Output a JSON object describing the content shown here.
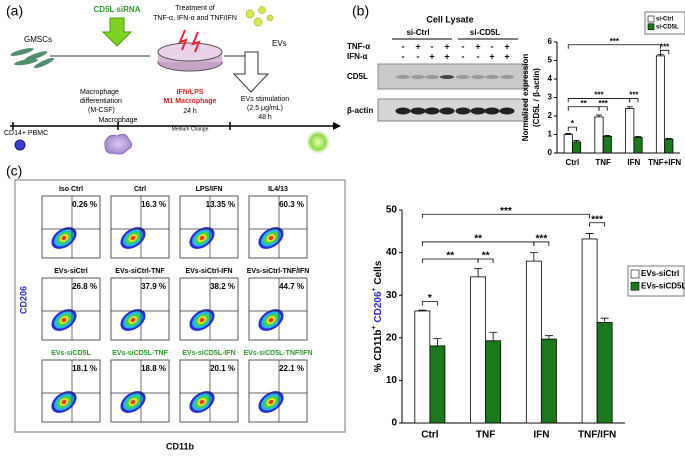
{
  "panel_a": {
    "label": "(a)",
    "gmscs": "GMSCs",
    "sirna": "CD5L siRNA",
    "treatment": [
      "Treatment of",
      "TNF-α, IFN-α and TNF/IFN"
    ],
    "evs": "EVs",
    "differentiation": [
      "Macrophage",
      "differentiation",
      "(M-CSF)"
    ],
    "m1": [
      "IFN/LPS",
      "M1 Macrophage",
      "24 h"
    ],
    "stimulation": [
      "EVs stimulation",
      "(2.5 μg/mL)",
      "48 h"
    ],
    "pbmc": "CD14+ PBMC",
    "macrophage": "Macrophage",
    "medium": "Medium Change"
  },
  "panel_b": {
    "label": "(b)",
    "blot_title": "Cell Lysate",
    "groups": [
      "si-Ctrl",
      "si-CD5L"
    ],
    "rows": [
      {
        "name": "TNF-α",
        "signs": [
          "-",
          "+",
          "-",
          "+",
          "-",
          "+",
          "-",
          "+"
        ]
      },
      {
        "name": "IFN-α",
        "signs": [
          "-",
          "-",
          "+",
          "+",
          "-",
          "-",
          "+",
          "+"
        ]
      }
    ],
    "bands": [
      "CD5L",
      "β-actin"
    ]
  },
  "panel_c": {
    "label": "(c)",
    "y_marker": "CD206",
    "x_marker": "CD11b",
    "plots": [
      {
        "label": "Iso Ctrl",
        "percent": "0.26 %",
        "color": "#000000"
      },
      {
        "label": "Ctrl",
        "percent": "16.3 %",
        "color": "#000000"
      },
      {
        "label": "LPS/IFN",
        "percent": "13.35 %",
        "color": "#000000"
      },
      {
        "label": "IL4/13",
        "percent": "60.3 %",
        "color": "#000000"
      },
      {
        "label": "EVs-siCtrl",
        "percent": "26.8 %",
        "color": "#000000"
      },
      {
        "label": "EVs-siCtrl-TNF",
        "percent": "37.9 %",
        "color": "#000000"
      },
      {
        "label": "EVs-siCtrl-IFN",
        "percent": "38.2 %",
        "color": "#000000"
      },
      {
        "label": "EVs-siCtrl-TNF/IFN",
        "percent": "44.7 %",
        "color": "#000000"
      },
      {
        "label": "EVs-siCD5L",
        "percent": "18.1 %",
        "color": "#2a9a2a"
      },
      {
        "label": "EVs-siCD5L-TNF",
        "percent": "18.8 %",
        "color": "#2a9a2a"
      },
      {
        "label": "EVs-siCD5L-IFN",
        "percent": "20.1 %",
        "color": "#2a9a2a"
      },
      {
        "label": "EVs-siCD5L-TNF/IFN",
        "percent": "22.1 %",
        "color": "#2a9a2a"
      }
    ]
  },
  "chart_data": [
    {
      "type": "bar",
      "y_label": [
        "Normalized expression",
        "(CD5L / β-actin)"
      ],
      "categories": [
        "Ctrl",
        "TNF",
        "IFN",
        "TNF+IFN"
      ],
      "series": [
        {
          "name": "si-Ctrl",
          "color": "#ffffff",
          "values": [
            1.0,
            1.95,
            2.4,
            5.25
          ],
          "errors": [
            0.05,
            0.1,
            0.1,
            0.08
          ]
        },
        {
          "name": "si-CD5L",
          "color": "#1a7a1a",
          "values": [
            0.6,
            0.9,
            0.85,
            0.75
          ],
          "errors": [
            0.08,
            0.05,
            0.05,
            0.04
          ]
        }
      ],
      "ylim": [
        0,
        6
      ],
      "yticks": [
        0,
        1,
        2,
        3,
        4,
        5,
        6
      ],
      "annotations": [
        "*",
        "**",
        "***",
        "***",
        "***",
        "***",
        "***"
      ],
      "legend": "upper right"
    },
    {
      "type": "bar",
      "y_label": [
        "% CD11b",
        "+",
        " CD206",
        "+",
        " Cells"
      ],
      "categories": [
        "Ctrl",
        "TNF",
        "IFN",
        "TNF/IFN"
      ],
      "series": [
        {
          "name": "EVs-siCtrl",
          "color": "#ffffff",
          "values": [
            26.3,
            34.3,
            38.0,
            43.2
          ],
          "errors": [
            0.2,
            2.0,
            2.0,
            1.3
          ]
        },
        {
          "name": "EVs-siCD5L",
          "color": "#1a7a1a",
          "values": [
            18.1,
            19.3,
            19.7,
            23.6
          ],
          "errors": [
            1.7,
            2.0,
            0.8,
            1.0
          ]
        }
      ],
      "ylim": [
        0,
        50
      ],
      "yticks": [
        0,
        10,
        20,
        30,
        40,
        50
      ],
      "annotations": [
        "*",
        "**",
        "**",
        "**",
        "***",
        "***",
        "***"
      ],
      "legend": "right"
    }
  ]
}
